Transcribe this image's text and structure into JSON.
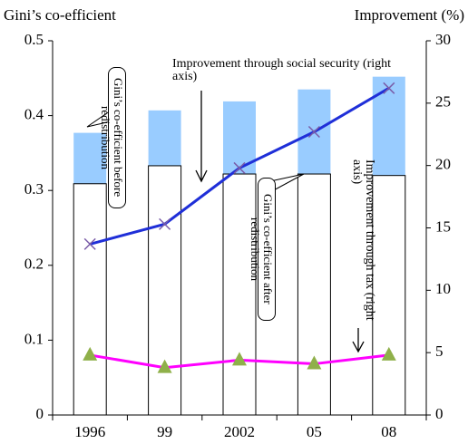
{
  "chart_data": {
    "type": "bar",
    "y_label": "Gini’s co-efficient",
    "y2_label": "Improvement (%)",
    "categories": [
      "1996",
      "99",
      "2002",
      "05",
      "08"
    ],
    "ylim": [
      0,
      0.5
    ],
    "yticks": [
      0,
      0.1,
      0.2,
      0.3,
      0.4,
      0.5
    ],
    "y2lim": [
      0,
      30
    ],
    "y2ticks": [
      0,
      5,
      10,
      15,
      20,
      25,
      30
    ],
    "series": [
      {
        "name": "Gini’s co-efficient before redistribution",
        "type": "bar",
        "color": "#99ccff",
        "values": [
          0.377,
          0.407,
          0.419,
          0.435,
          0.452
        ]
      },
      {
        "name": "Gini’s co-efficient after redistribution",
        "type": "bar",
        "color": "#ffffff",
        "values": [
          0.309,
          0.333,
          0.322,
          0.322,
          0.32
        ]
      },
      {
        "name": "Improvement through social security (right axis)",
        "type": "line",
        "axis": "y2",
        "color": "#1f2fd8",
        "marker": "x",
        "marker_color": "#7a5ca8",
        "values": [
          13.7,
          15.3,
          19.8,
          22.7,
          26.2
        ]
      },
      {
        "name": "Improvement through tax (right axis)",
        "type": "line",
        "axis": "y2",
        "color": "#ff00ff",
        "marker": "triangle",
        "marker_color": "#8fb04a",
        "values": [
          4.8,
          3.8,
          4.4,
          4.1,
          4.8
        ]
      }
    ]
  }
}
